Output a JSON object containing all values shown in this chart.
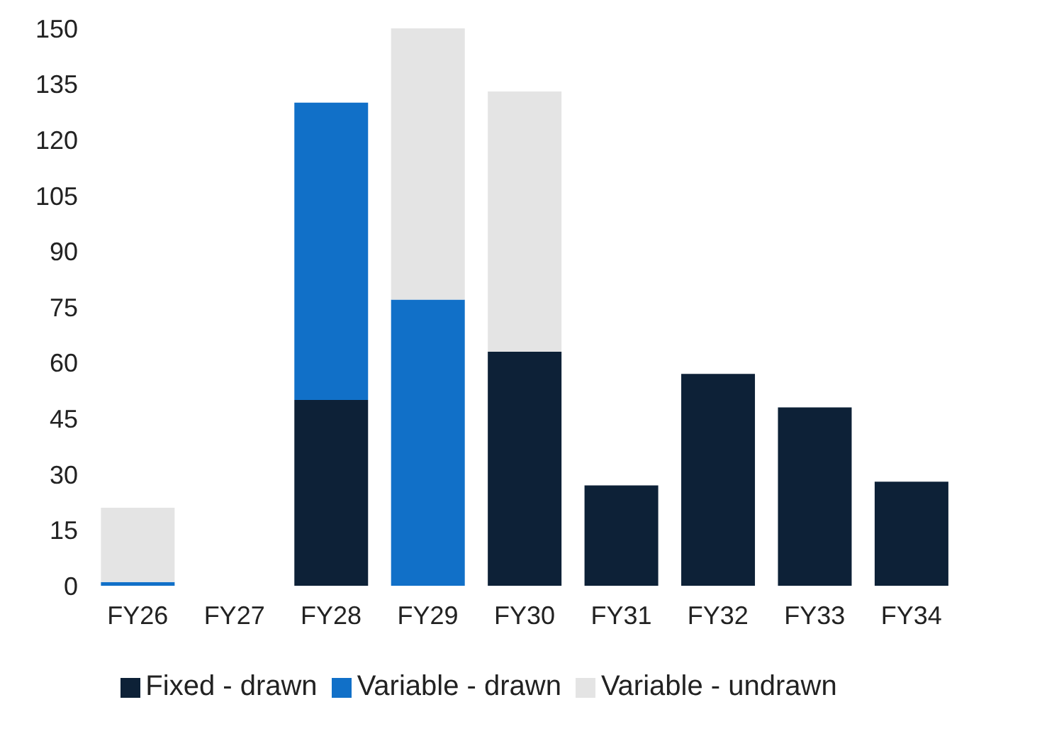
{
  "chart_data": {
    "type": "bar",
    "stacked": true,
    "categories": [
      "FY26",
      "FY27",
      "FY28",
      "FY29",
      "FY30",
      "FY31",
      "FY32",
      "FY33",
      "FY34"
    ],
    "series": [
      {
        "name": "Fixed - drawn",
        "color": "#0d2137",
        "values": [
          0,
          0,
          50,
          0,
          63,
          27,
          57,
          48,
          28
        ]
      },
      {
        "name": "Variable - drawn",
        "color": "#1170c8",
        "values": [
          1,
          0,
          80,
          77,
          0,
          0,
          0,
          0,
          0
        ]
      },
      {
        "name": "Variable - undrawn",
        "color": "#e4e4e4",
        "values": [
          20,
          0,
          0,
          73,
          70,
          0,
          0,
          0,
          0
        ]
      }
    ],
    "ylim": [
      0,
      150
    ],
    "yticks": [
      0,
      15,
      30,
      45,
      60,
      75,
      90,
      105,
      120,
      135,
      150
    ],
    "grid": false,
    "legend": "bottom"
  }
}
